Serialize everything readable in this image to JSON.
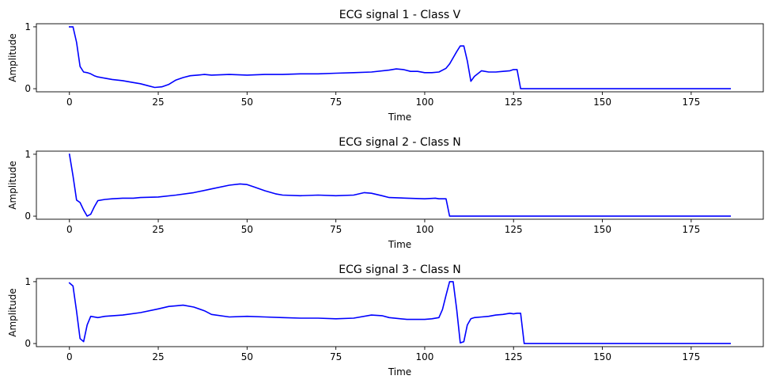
{
  "chart_data": [
    {
      "type": "line",
      "title": "ECG signal 1 - Class V",
      "xlabel": "Time",
      "ylabel": "Amplitude",
      "xlim": [
        -9.3,
        195.3
      ],
      "ylim": [
        -0.05,
        1.05
      ],
      "xticks": [
        0,
        25,
        50,
        75,
        100,
        125,
        150,
        175
      ],
      "yticks": [
        0,
        1
      ],
      "grid": false,
      "color": "#0000ff",
      "series": [
        {
          "x": [
            0,
            1,
            2,
            3,
            4,
            5,
            6,
            7,
            8,
            10,
            12,
            15,
            18,
            20,
            22,
            24,
            26,
            28,
            30,
            32,
            34,
            36,
            38,
            40,
            45,
            50,
            55,
            60,
            65,
            70,
            75,
            80,
            85,
            90,
            92,
            94,
            96,
            98,
            100,
            102,
            104,
            106,
            107,
            108,
            109,
            110,
            111,
            112,
            113,
            114,
            116,
            118,
            120,
            122,
            124,
            125,
            126,
            127,
            130,
            186
          ],
          "y": [
            1.0,
            1.0,
            0.75,
            0.36,
            0.27,
            0.26,
            0.24,
            0.21,
            0.19,
            0.17,
            0.15,
            0.13,
            0.1,
            0.08,
            0.05,
            0.02,
            0.03,
            0.07,
            0.14,
            0.18,
            0.21,
            0.22,
            0.23,
            0.22,
            0.23,
            0.22,
            0.23,
            0.23,
            0.24,
            0.24,
            0.25,
            0.26,
            0.27,
            0.3,
            0.32,
            0.31,
            0.28,
            0.28,
            0.26,
            0.26,
            0.27,
            0.33,
            0.4,
            0.5,
            0.6,
            0.69,
            0.69,
            0.45,
            0.12,
            0.2,
            0.29,
            0.27,
            0.27,
            0.28,
            0.29,
            0.31,
            0.31,
            0.0,
            0.0,
            0.0
          ]
        }
      ]
    },
    {
      "type": "line",
      "title": "ECG signal 2 - Class N",
      "xlabel": "Time",
      "ylabel": "Amplitude",
      "xlim": [
        -9.3,
        195.3
      ],
      "ylim": [
        -0.05,
        1.05
      ],
      "xticks": [
        0,
        25,
        50,
        75,
        100,
        125,
        150,
        175
      ],
      "yticks": [
        0,
        1
      ],
      "grid": false,
      "color": "#0000ff",
      "series": [
        {
          "x": [
            0,
            1,
            2,
            3,
            4,
            5,
            6,
            7,
            8,
            10,
            12,
            15,
            18,
            20,
            25,
            30,
            35,
            40,
            45,
            48,
            50,
            52,
            55,
            58,
            60,
            65,
            70,
            75,
            80,
            83,
            85,
            88,
            90,
            95,
            100,
            103,
            104,
            106,
            107,
            186
          ],
          "y": [
            1.0,
            0.65,
            0.26,
            0.22,
            0.1,
            0.0,
            0.03,
            0.15,
            0.25,
            0.27,
            0.28,
            0.29,
            0.29,
            0.3,
            0.31,
            0.34,
            0.38,
            0.44,
            0.5,
            0.52,
            0.51,
            0.47,
            0.41,
            0.36,
            0.34,
            0.33,
            0.34,
            0.33,
            0.34,
            0.38,
            0.37,
            0.33,
            0.3,
            0.29,
            0.28,
            0.29,
            0.28,
            0.28,
            0.0,
            0.0
          ]
        }
      ]
    },
    {
      "type": "line",
      "title": "ECG signal 3 - Class N",
      "xlabel": "Time",
      "ylabel": "Amplitude",
      "xlim": [
        -9.3,
        195.3
      ],
      "ylim": [
        -0.05,
        1.05
      ],
      "xticks": [
        0,
        25,
        50,
        75,
        100,
        125,
        150,
        175
      ],
      "yticks": [
        0,
        1
      ],
      "grid": false,
      "color": "#0000ff",
      "series": [
        {
          "x": [
            0,
            1,
            2,
            3,
            4,
            5,
            6,
            8,
            10,
            15,
            20,
            25,
            28,
            30,
            32,
            35,
            38,
            40,
            45,
            50,
            55,
            60,
            65,
            70,
            75,
            80,
            85,
            88,
            90,
            95,
            100,
            102,
            104,
            105,
            106,
            107,
            108,
            109,
            110,
            111,
            112,
            113,
            114,
            116,
            118,
            120,
            122,
            124,
            125,
            126,
            127,
            128,
            186
          ],
          "y": [
            0.98,
            0.93,
            0.52,
            0.08,
            0.03,
            0.3,
            0.44,
            0.42,
            0.44,
            0.46,
            0.5,
            0.56,
            0.6,
            0.61,
            0.62,
            0.59,
            0.53,
            0.47,
            0.43,
            0.44,
            0.43,
            0.42,
            0.41,
            0.41,
            0.4,
            0.41,
            0.46,
            0.45,
            0.42,
            0.39,
            0.39,
            0.4,
            0.42,
            0.55,
            0.78,
            1.0,
            1.0,
            0.55,
            0.01,
            0.03,
            0.3,
            0.4,
            0.42,
            0.43,
            0.44,
            0.46,
            0.47,
            0.49,
            0.48,
            0.49,
            0.49,
            0.0,
            0.0
          ]
        }
      ]
    }
  ]
}
